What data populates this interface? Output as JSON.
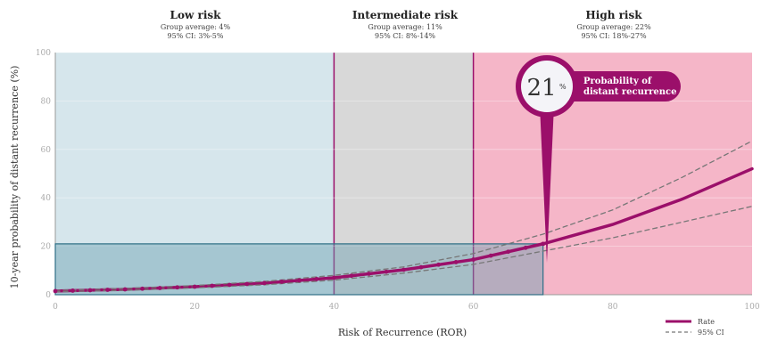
{
  "colors": {
    "low_zone": "#d6e6ec",
    "mid_zone": "#d8d8d8",
    "high_zone": "#f5b6c8",
    "accent": "#9b0f6a",
    "ci_line": "#777777",
    "highlight_box": "#6a9fb2"
  },
  "zones": [
    {
      "title": "Low risk",
      "average": "Group average: 4%",
      "ci": "95% CI: 3%-5%"
    },
    {
      "title": "Intermediate risk",
      "average": "Group average: 11%",
      "ci": "95% CI: 8%-14%"
    },
    {
      "title": "High risk",
      "average": "Group average: 22%",
      "ci": "95% CI: 18%-27%"
    }
  ],
  "callout": {
    "value": "21",
    "unit": "%",
    "text_line1": "Probability of",
    "text_line2": "distant recurrence",
    "at_ror": 70
  },
  "chart_data": {
    "type": "line",
    "xlabel": "Risk of Recurrence (ROR)",
    "ylabel": "10-year probability of distant recurrence (%)",
    "xlim": [
      0,
      100
    ],
    "ylim": [
      0,
      100
    ],
    "x_ticks": [
      "0",
      "20",
      "40",
      "60",
      "80",
      "100"
    ],
    "y_ticks": [
      "0",
      "20",
      "40",
      "60",
      "80",
      "100"
    ],
    "zone_bounds": [
      0,
      40,
      60,
      100
    ],
    "highlight": {
      "x": 70,
      "y": 21
    },
    "legend_position": "bottom-right",
    "series": [
      {
        "name": "Rate",
        "style": "solid",
        "x": [
          0,
          10,
          20,
          30,
          40,
          50,
          60,
          70,
          80,
          90,
          100
        ],
        "y": [
          1.5,
          2.2,
          3.3,
          4.8,
          7,
          10.3,
          14.5,
          21,
          29,
          39.5,
          52
        ]
      },
      {
        "name": "95% CI",
        "style": "dashed",
        "x": [
          0,
          10,
          20,
          30,
          40,
          50,
          60,
          70,
          80,
          90,
          100
        ],
        "y": [
          1.8,
          2.6,
          3.8,
          5.5,
          8,
          11.5,
          17,
          25,
          35,
          48.5,
          63.5
        ]
      },
      {
        "name": "",
        "style": "dashed",
        "x": [
          0,
          10,
          20,
          30,
          40,
          50,
          60,
          70,
          80,
          90,
          100
        ],
        "y": [
          1.2,
          1.8,
          2.8,
          4.1,
          6,
          8.9,
          12.5,
          18,
          23.5,
          30,
          36.5
        ]
      }
    ]
  }
}
